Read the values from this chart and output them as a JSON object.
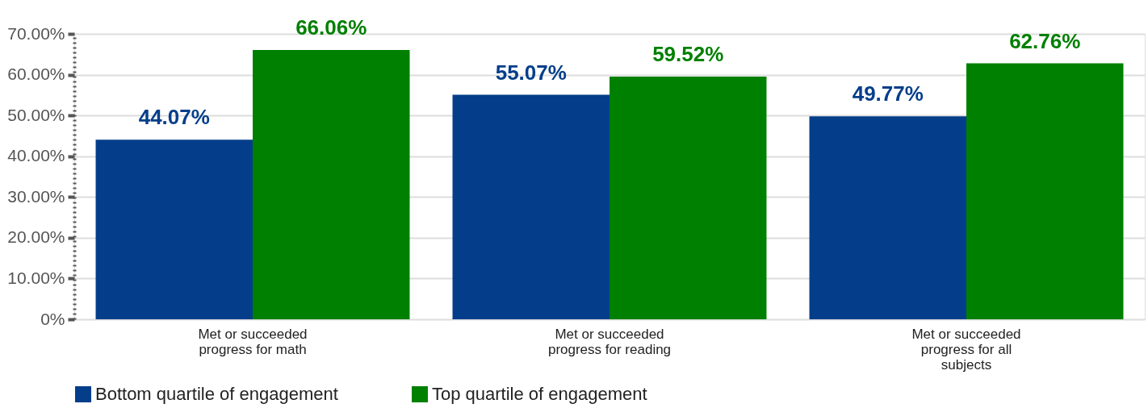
{
  "chart_data": {
    "type": "bar",
    "categories": [
      "Met or succeeded progress for math",
      "Met or succeeded progress for reading",
      "Met or succeeded progress for all subjects"
    ],
    "series": [
      {
        "name": "Bottom quartile of engagement",
        "color": "#043e8a",
        "values": [
          44.07,
          55.07,
          49.77
        ],
        "value_labels": [
          "44.07%",
          "55.07%",
          "49.77%"
        ]
      },
      {
        "name": "Top quartile of engagement",
        "color": "#008000",
        "values": [
          66.06,
          59.52,
          62.76
        ],
        "value_labels": [
          "66.06%",
          "59.52%",
          "62.76%"
        ]
      }
    ],
    "ylim": [
      0,
      70
    ],
    "yticks": [
      {
        "value": 0,
        "label": "0%"
      },
      {
        "value": 10,
        "label": "10.00%"
      },
      {
        "value": 20,
        "label": "20.00%"
      },
      {
        "value": 30,
        "label": "30.00%"
      },
      {
        "value": 40,
        "label": "40.00%"
      },
      {
        "value": 50,
        "label": "50.00%"
      },
      {
        "value": 60,
        "label": "60.00%"
      },
      {
        "value": 70,
        "label": "70.00%"
      }
    ],
    "grid": "y",
    "legend": "bottom"
  }
}
